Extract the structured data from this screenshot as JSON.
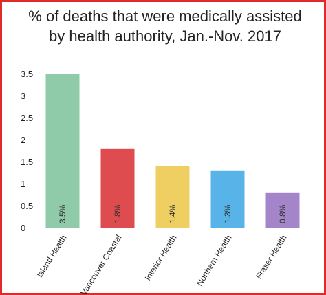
{
  "chart_data": {
    "type": "bar",
    "title_line1": "% of deaths that were medically assisted",
    "title_line2": "by health authority, Jan.-Nov. 2017",
    "categories": [
      "Island Health",
      "Vancouver Coastal",
      "Interior Health",
      "Northern Health",
      "Fraser Health"
    ],
    "values": [
      3.5,
      1.8,
      1.4,
      1.3,
      0.8
    ],
    "data_labels": [
      "3.5%",
      "1.8%",
      "1.4%",
      "1.3%",
      "0.8%"
    ],
    "colors": [
      "#8fcaa9",
      "#de4c4f",
      "#f0cf62",
      "#58b4e8",
      "#a585c9"
    ],
    "ylim": [
      0,
      3.5
    ],
    "yticks": [
      "0",
      "0.5",
      "1",
      "1.5",
      "2",
      "2.5",
      "3",
      "3.5"
    ],
    "xlabel": "",
    "ylabel": "",
    "grid": false,
    "legend": "none"
  }
}
